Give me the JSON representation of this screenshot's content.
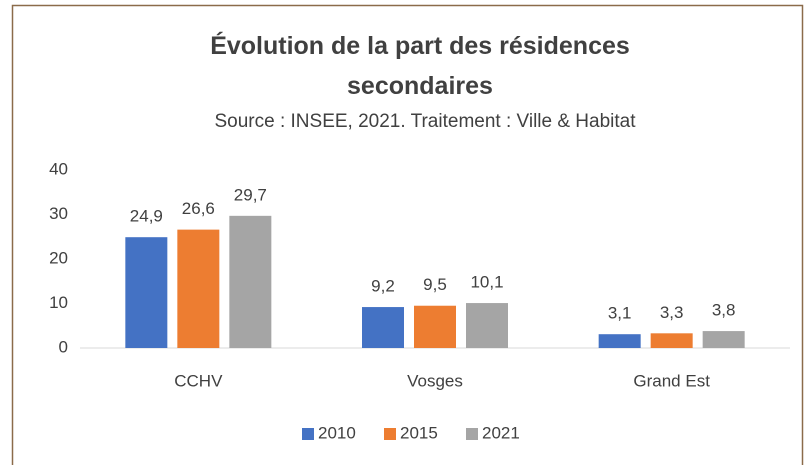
{
  "chart_data": {
    "type": "bar",
    "title": "Évolution de la part des résidences secondaires",
    "subtitle": "Source : INSEE, 2021. Traitement : Ville & Habitat",
    "categories": [
      "CCHV",
      "Vosges",
      "Grand Est"
    ],
    "series": [
      {
        "name": "2010",
        "color": "#4472c4",
        "values": [
          24.9,
          9.2,
          3.1
        ],
        "value_labels": [
          "24,9",
          "9,2",
          "3,1"
        ]
      },
      {
        "name": "2015",
        "color": "#ed7d31",
        "values": [
          26.6,
          9.5,
          3.3
        ],
        "value_labels": [
          "26,6",
          "9,5",
          "3,3"
        ]
      },
      {
        "name": "2021",
        "color": "#a5a5a5",
        "values": [
          29.7,
          10.1,
          3.8
        ],
        "value_labels": [
          "29,7",
          "10,1",
          "3,8"
        ]
      }
    ],
    "ylim": [
      0,
      40
    ],
    "yticks": [
      0,
      10,
      20,
      30,
      40
    ],
    "grid": false,
    "legend": "bottom"
  }
}
